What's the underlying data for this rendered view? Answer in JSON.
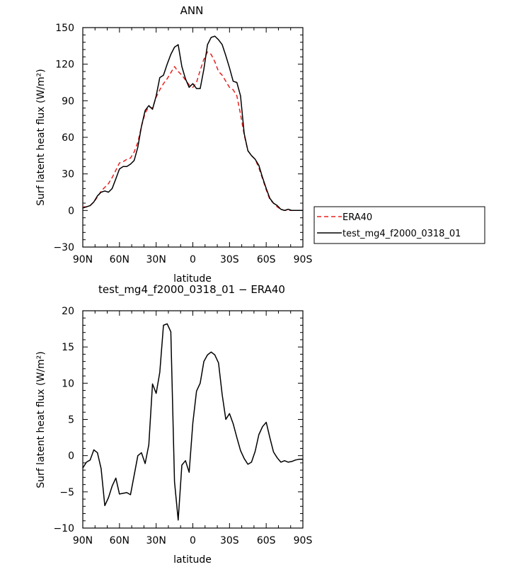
{
  "chart_data": [
    {
      "type": "line",
      "title": "ANN",
      "xlabel": "latitude",
      "ylabel": "Surf latent heat flux (W/m²)",
      "xlim": [
        90,
        -90
      ],
      "ylim": [
        -30,
        150
      ],
      "xticks": [
        90,
        60,
        30,
        0,
        -30,
        -60,
        -90
      ],
      "xtick_labels": [
        "90N",
        "60N",
        "30N",
        "0",
        "30S",
        "60S",
        "90S"
      ],
      "yticks": [
        -30,
        0,
        30,
        60,
        90,
        120,
        150
      ],
      "ytick_labels": [
        "−30",
        "0",
        "30",
        "60",
        "90",
        "120",
        "150"
      ],
      "legend_position": "right",
      "series": [
        {
          "name": "ERA40",
          "color": "#e8201d",
          "dash": true,
          "x": [
            90,
            87,
            84,
            81,
            78,
            75,
            72,
            69,
            66,
            63,
            60,
            57,
            54,
            51,
            48,
            45,
            42,
            39,
            36,
            33,
            30,
            27,
            24,
            21,
            18,
            15,
            12,
            9,
            6,
            3,
            0,
            -3,
            -6,
            -9,
            -12,
            -15,
            -18,
            -21,
            -24,
            -27,
            -30,
            -33,
            -36,
            -39,
            -42,
            -45,
            -48,
            -51,
            -54,
            -57,
            -60,
            -63,
            -66,
            -69,
            -72,
            -75,
            -78,
            -81,
            -84,
            -87,
            -90
          ],
          "values": [
            3,
            3,
            4,
            7,
            11,
            16,
            19,
            22,
            27,
            33,
            39,
            40,
            42,
            43,
            48,
            56,
            69,
            80,
            85,
            84,
            93,
            99,
            104,
            108,
            113,
            118,
            114,
            111,
            107,
            103,
            101,
            105,
            115,
            124,
            130,
            128,
            122,
            114,
            111,
            106,
            101,
            99,
            94,
            79,
            62,
            49,
            45,
            42,
            35,
            26,
            17,
            9,
            6,
            3,
            1,
            0,
            0,
            0,
            0,
            0,
            0
          ]
        },
        {
          "name": "test_mg4_f2000_0318_01",
          "color": "#000000",
          "dash": false,
          "x": [
            90,
            87,
            84,
            81,
            78,
            75,
            72,
            69,
            66,
            63,
            60,
            57,
            54,
            51,
            48,
            45,
            42,
            39,
            36,
            33,
            30,
            27,
            24,
            21,
            18,
            15,
            12,
            9,
            6,
            3,
            0,
            -3,
            -6,
            -9,
            -12,
            -15,
            -18,
            -21,
            -24,
            -27,
            -30,
            -33,
            -36,
            -39,
            -42,
            -45,
            -48,
            -51,
            -54,
            -57,
            -60,
            -63,
            -66,
            -69,
            -72,
            -75,
            -78,
            -81,
            -84,
            -87,
            -90
          ],
          "values": [
            2,
            3,
            4,
            7,
            12,
            15,
            16,
            15,
            18,
            26,
            34,
            36,
            36,
            38,
            41,
            52,
            69,
            82,
            86,
            83,
            94,
            109,
            111,
            120,
            128,
            134,
            136,
            118,
            108,
            101,
            104,
            100,
            100,
            116,
            136,
            142,
            143,
            140,
            136,
            127,
            117,
            106,
            105,
            94,
            63,
            49,
            45,
            42,
            37,
            27,
            18,
            10,
            6,
            4,
            1,
            0,
            1,
            0,
            0,
            0,
            0
          ]
        }
      ]
    },
    {
      "type": "line",
      "title": "test_mg4_f2000_0318_01 − ERA40",
      "xlabel": "latitude",
      "ylabel": "Surf latent heat flux (W/m²)",
      "xlim": [
        90,
        -90
      ],
      "ylim": [
        -10,
        20
      ],
      "xticks": [
        90,
        60,
        30,
        0,
        -30,
        -60,
        -90
      ],
      "xtick_labels": [
        "90N",
        "60N",
        "30N",
        "0",
        "30S",
        "60S",
        "90S"
      ],
      "yticks": [
        -10,
        -5,
        0,
        5,
        10,
        15,
        20
      ],
      "ytick_labels": [
        "−10",
        "−5",
        "0",
        "5",
        "10",
        "15",
        "20"
      ],
      "series": [
        {
          "color": "#000000",
          "x": [
            90,
            87,
            84,
            81,
            78,
            75,
            72,
            69,
            66,
            63,
            60,
            57,
            54,
            51,
            48,
            45,
            42,
            39,
            36,
            33,
            30,
            27,
            24,
            21,
            18,
            15,
            12,
            9,
            6,
            3,
            0,
            -3,
            -6,
            -9,
            -12,
            -15,
            -18,
            -21,
            -24,
            -27,
            -30,
            -33,
            -36,
            -39,
            -42,
            -45,
            -48,
            -51,
            -54,
            -57,
            -60,
            -63,
            -66,
            -69,
            -72,
            -75,
            -78,
            -81,
            -84,
            -87,
            -90
          ],
          "values": [
            -1.7,
            -0.9,
            -0.6,
            0.8,
            0.4,
            -1.8,
            -6.9,
            -5.8,
            -4.2,
            -3.1,
            -5.3,
            -5.2,
            -5.1,
            -5.4,
            -2.7,
            0,
            0.4,
            -1.1,
            1.5,
            9.9,
            8.6,
            11.5,
            18.0,
            18.2,
            17.1,
            -3.6,
            -8.9,
            -1.3,
            -0.7,
            -2.3,
            4.5,
            8.9,
            10.0,
            13.0,
            13.9,
            14.3,
            13.9,
            12.8,
            8.4,
            5.0,
            5.8,
            4.4,
            2.5,
            0.7,
            -0.4,
            -1.2,
            -0.9,
            0.6,
            2.9,
            4.0,
            4.6,
            2.5,
            0.5,
            -0.3,
            -0.9,
            -0.7,
            -0.9,
            -0.8,
            -0.6,
            -0.5,
            -0.5
          ]
        }
      ]
    }
  ]
}
